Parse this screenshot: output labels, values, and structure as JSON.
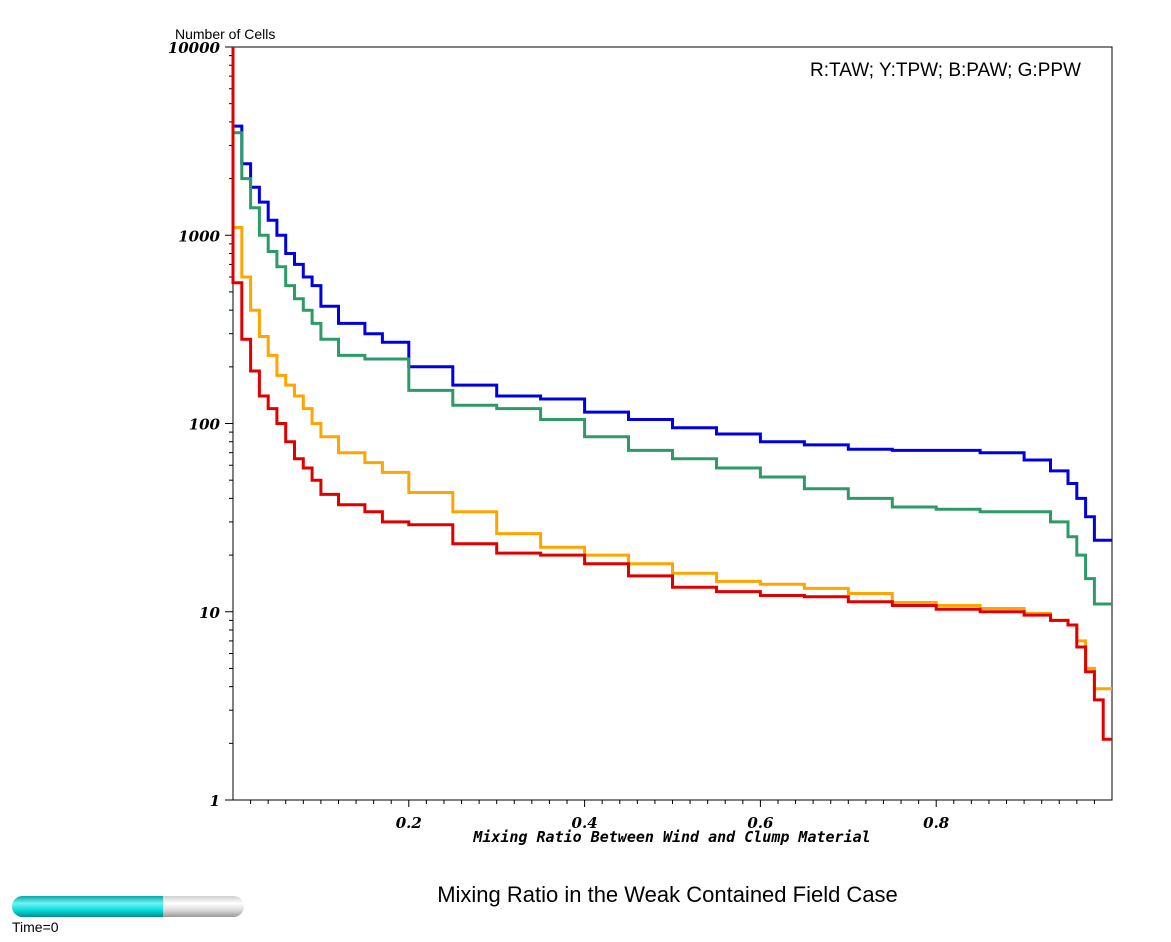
{
  "chart_data": {
    "type": "line",
    "step": true,
    "yscale": "log",
    "xlim": [
      0,
      1.0
    ],
    "ylim": [
      1,
      10000
    ],
    "xlabel": "Mixing Ratio Between Wind and Clump Material",
    "ylabel": "Number of Cells",
    "x_ticks": [
      "0.2",
      "0.4",
      "0.6",
      "0.8"
    ],
    "y_ticks": [
      "10000",
      "1000",
      "100",
      "10",
      "1"
    ],
    "annotation": "R:TAW; Y:TPW; B:PAW; G:PPW",
    "grid": false,
    "x": [
      0.01,
      0.02,
      0.03,
      0.04,
      0.05,
      0.06,
      0.07,
      0.08,
      0.09,
      0.1,
      0.12,
      0.15,
      0.17,
      0.2,
      0.25,
      0.3,
      0.35,
      0.4,
      0.45,
      0.5,
      0.55,
      0.6,
      0.65,
      0.7,
      0.75,
      0.8,
      0.85,
      0.9,
      0.93,
      0.95,
      0.96,
      0.97,
      0.98,
      0.99,
      1.0
    ],
    "series": [
      {
        "name": "B",
        "color": "#0000e0",
        "values": [
          3800,
          2400,
          1800,
          1500,
          1200,
          1000,
          800,
          700,
          600,
          540,
          420,
          340,
          300,
          270,
          200,
          160,
          140,
          135,
          115,
          105,
          95,
          88,
          80,
          77,
          73,
          72,
          72,
          70,
          64,
          56,
          48,
          40,
          32,
          24,
          24
        ]
      },
      {
        "name": "G",
        "color": "#2e9a68",
        "values": [
          3500,
          2000,
          1400,
          1000,
          820,
          680,
          540,
          460,
          400,
          340,
          280,
          230,
          220,
          220,
          150,
          125,
          120,
          105,
          85,
          72,
          65,
          58,
          52,
          45,
          40,
          36,
          35,
          34,
          34,
          30,
          25,
          20,
          15,
          11,
          11
        ]
      },
      {
        "name": "Y",
        "color": "#ffa500",
        "values": [
          1100,
          600,
          400,
          290,
          230,
          180,
          160,
          140,
          120,
          100,
          85,
          70,
          62,
          55,
          43,
          34,
          26,
          22,
          20,
          18,
          16,
          14.5,
          14,
          13.3,
          12.5,
          11.2,
          10.8,
          10.4,
          9.8,
          9,
          8.5,
          7,
          5,
          3.9,
          3.9
        ]
      },
      {
        "name": "R",
        "color": "#e00000",
        "values": [
          560,
          280,
          190,
          140,
          120,
          100,
          80,
          65,
          58,
          50,
          42,
          37,
          34,
          30,
          29,
          23,
          20.5,
          20,
          18,
          15.5,
          13.5,
          12.8,
          12.2,
          12,
          11.3,
          10.8,
          10.3,
          10,
          9.6,
          9,
          8.5,
          6.5,
          4.8,
          3.4,
          2.1
        ]
      }
    ]
  },
  "caption": "Mixing Ratio in the Weak Contained Field Case",
  "time": {
    "label": "Time=0",
    "progress": 0.65
  }
}
